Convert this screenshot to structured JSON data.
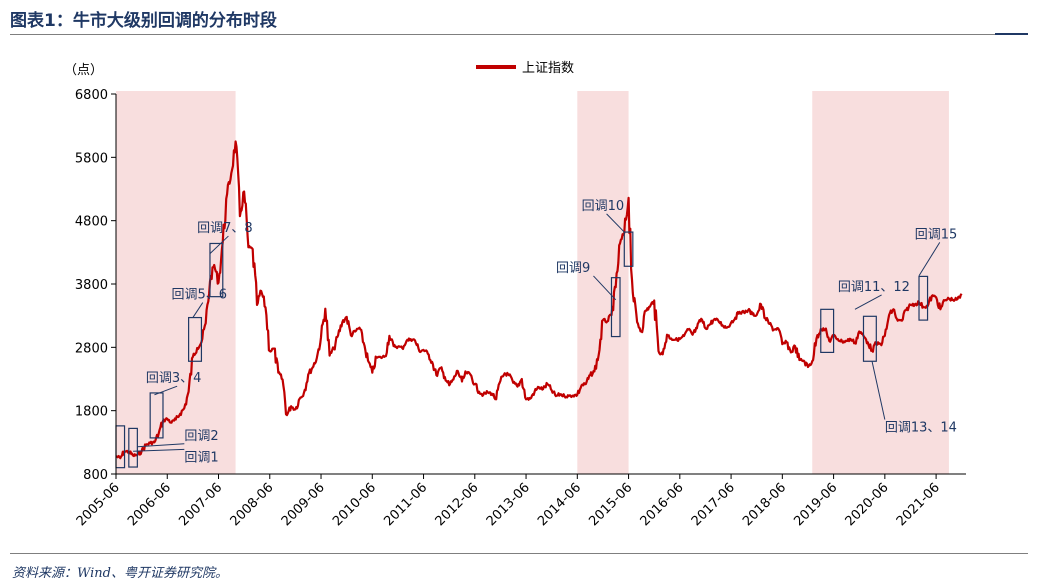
{
  "header": {
    "title": "图表1：牛市大级别回调的分布时段"
  },
  "footer": {
    "source": "资料来源：Wind、粤开证券研究院。"
  },
  "chart_data": {
    "type": "line",
    "unit_label": "（点）",
    "ylim": [
      800,
      6800
    ],
    "yticks": [
      800,
      1800,
      2800,
      3800,
      4800,
      5800,
      6800
    ],
    "xlim": [
      "2005-06",
      "2022-01"
    ],
    "xticks": [
      "2005-06",
      "2006-06",
      "2007-06",
      "2008-06",
      "2009-06",
      "2010-06",
      "2011-06",
      "2012-06",
      "2013-06",
      "2014-06",
      "2015-06",
      "2016-06",
      "2017-06",
      "2018-06",
      "2019-06",
      "2020-06",
      "2021-06"
    ],
    "legend": {
      "position": "top-center"
    },
    "series": [
      {
        "name": "上证指数",
        "color": "#c00000",
        "points": [
          [
            "2005-06",
            1080
          ],
          [
            "2005-07",
            1050
          ],
          [
            "2005-08",
            1160
          ],
          [
            "2005-09",
            1150
          ],
          [
            "2005-10",
            1090
          ],
          [
            "2005-11",
            1100
          ],
          [
            "2005-12",
            1160
          ],
          [
            "2006-01",
            1260
          ],
          [
            "2006-02",
            1290
          ],
          [
            "2006-03",
            1300
          ],
          [
            "2006-04",
            1440
          ],
          [
            "2006-05",
            1640
          ],
          [
            "2006-06",
            1670
          ],
          [
            "2006-07",
            1610
          ],
          [
            "2006-08",
            1660
          ],
          [
            "2006-09",
            1750
          ],
          [
            "2006-10",
            1840
          ],
          [
            "2006-11",
            2100
          ],
          [
            "2006-12",
            2650
          ],
          [
            "2007-01",
            2790
          ],
          [
            "2007-02",
            2880
          ],
          [
            "2007-03",
            3180
          ],
          [
            "2007-04",
            3840
          ],
          [
            "2007-05",
            4100
          ],
          [
            "2007-06",
            3820
          ],
          [
            "2007-07",
            4470
          ],
          [
            "2007-08",
            5220
          ],
          [
            "2007-09",
            5550
          ],
          [
            "2007-10",
            6050
          ],
          [
            "2007-11",
            4870
          ],
          [
            "2007-12",
            5260
          ],
          [
            "2008-01",
            4380
          ],
          [
            "2008-02",
            4350
          ],
          [
            "2008-03",
            3470
          ],
          [
            "2008-04",
            3690
          ],
          [
            "2008-05",
            3430
          ],
          [
            "2008-06",
            2740
          ],
          [
            "2008-07",
            2780
          ],
          [
            "2008-08",
            2400
          ],
          [
            "2008-09",
            2290
          ],
          [
            "2008-10",
            1730
          ],
          [
            "2008-11",
            1870
          ],
          [
            "2008-12",
            1820
          ],
          [
            "2009-01",
            1990
          ],
          [
            "2009-02",
            2080
          ],
          [
            "2009-03",
            2370
          ],
          [
            "2009-04",
            2480
          ],
          [
            "2009-05",
            2630
          ],
          [
            "2009-06",
            2960
          ],
          [
            "2009-07",
            3410
          ],
          [
            "2009-08",
            2670
          ],
          [
            "2009-09",
            2780
          ],
          [
            "2009-10",
            2990
          ],
          [
            "2009-11",
            3200
          ],
          [
            "2009-12",
            3280
          ],
          [
            "2010-01",
            2990
          ],
          [
            "2010-02",
            3050
          ],
          [
            "2010-03",
            3110
          ],
          [
            "2010-04",
            2870
          ],
          [
            "2010-05",
            2590
          ],
          [
            "2010-06",
            2400
          ],
          [
            "2010-07",
            2640
          ],
          [
            "2010-08",
            2640
          ],
          [
            "2010-09",
            2660
          ],
          [
            "2010-10",
            2980
          ],
          [
            "2010-11",
            2820
          ],
          [
            "2010-12",
            2810
          ],
          [
            "2011-01",
            2790
          ],
          [
            "2011-02",
            2900
          ],
          [
            "2011-03",
            2930
          ],
          [
            "2011-04",
            2910
          ],
          [
            "2011-05",
            2740
          ],
          [
            "2011-06",
            2760
          ],
          [
            "2011-07",
            2700
          ],
          [
            "2011-08",
            2570
          ],
          [
            "2011-09",
            2360
          ],
          [
            "2011-10",
            2470
          ],
          [
            "2011-11",
            2330
          ],
          [
            "2011-12",
            2200
          ],
          [
            "2012-01",
            2290
          ],
          [
            "2012-02",
            2430
          ],
          [
            "2012-03",
            2260
          ],
          [
            "2012-04",
            2400
          ],
          [
            "2012-05",
            2370
          ],
          [
            "2012-06",
            2220
          ],
          [
            "2012-07",
            2100
          ],
          [
            "2012-08",
            2050
          ],
          [
            "2012-09",
            2090
          ],
          [
            "2012-10",
            2070
          ],
          [
            "2012-11",
            1980
          ],
          [
            "2012-12",
            2270
          ],
          [
            "2013-01",
            2390
          ],
          [
            "2013-02",
            2360
          ],
          [
            "2013-03",
            2240
          ],
          [
            "2013-04",
            2180
          ],
          [
            "2013-05",
            2300
          ],
          [
            "2013-06",
            1980
          ],
          [
            "2013-07",
            1990
          ],
          [
            "2013-08",
            2100
          ],
          [
            "2013-09",
            2170
          ],
          [
            "2013-10",
            2140
          ],
          [
            "2013-11",
            2220
          ],
          [
            "2013-12",
            2120
          ],
          [
            "2014-01",
            2030
          ],
          [
            "2014-02",
            2060
          ],
          [
            "2014-03",
            2030
          ],
          [
            "2014-04",
            2030
          ],
          [
            "2014-05",
            2040
          ],
          [
            "2014-06",
            2050
          ],
          [
            "2014-07",
            2200
          ],
          [
            "2014-08",
            2220
          ],
          [
            "2014-09",
            2360
          ],
          [
            "2014-10",
            2420
          ],
          [
            "2014-11",
            2680
          ],
          [
            "2014-12",
            3230
          ],
          [
            "2015-01",
            3210
          ],
          [
            "2015-02",
            3310
          ],
          [
            "2015-03",
            3750
          ],
          [
            "2015-04",
            4440
          ],
          [
            "2015-05",
            4610
          ],
          [
            "2015-06",
            5160
          ],
          [
            "2015-07",
            3660
          ],
          [
            "2015-08",
            3200
          ],
          [
            "2015-09",
            3050
          ],
          [
            "2015-10",
            3380
          ],
          [
            "2015-11",
            3440
          ],
          [
            "2015-12",
            3540
          ],
          [
            "2016-01",
            2740
          ],
          [
            "2016-02",
            2690
          ],
          [
            "2016-03",
            3000
          ],
          [
            "2016-04",
            2940
          ],
          [
            "2016-05",
            2920
          ],
          [
            "2016-06",
            2930
          ],
          [
            "2016-07",
            2980
          ],
          [
            "2016-08",
            3080
          ],
          [
            "2016-09",
            3000
          ],
          [
            "2016-10",
            3100
          ],
          [
            "2016-11",
            3250
          ],
          [
            "2016-12",
            3100
          ],
          [
            "2017-01",
            3160
          ],
          [
            "2017-02",
            3240
          ],
          [
            "2017-03",
            3220
          ],
          [
            "2017-04",
            3150
          ],
          [
            "2017-05",
            3110
          ],
          [
            "2017-06",
            3190
          ],
          [
            "2017-07",
            3270
          ],
          [
            "2017-08",
            3360
          ],
          [
            "2017-09",
            3350
          ],
          [
            "2017-10",
            3390
          ],
          [
            "2017-11",
            3320
          ],
          [
            "2017-12",
            3310
          ],
          [
            "2018-01",
            3480
          ],
          [
            "2018-02",
            3260
          ],
          [
            "2018-03",
            3170
          ],
          [
            "2018-04",
            3080
          ],
          [
            "2018-05",
            3100
          ],
          [
            "2018-06",
            2850
          ],
          [
            "2018-07",
            2880
          ],
          [
            "2018-08",
            2720
          ],
          [
            "2018-09",
            2820
          ],
          [
            "2018-10",
            2600
          ],
          [
            "2018-11",
            2590
          ],
          [
            "2018-12",
            2490
          ],
          [
            "2019-01",
            2580
          ],
          [
            "2019-02",
            2940
          ],
          [
            "2019-03",
            3090
          ],
          [
            "2019-04",
            3080
          ],
          [
            "2019-05",
            2900
          ],
          [
            "2019-06",
            2980
          ],
          [
            "2019-07",
            2930
          ],
          [
            "2019-08",
            2890
          ],
          [
            "2019-09",
            2900
          ],
          [
            "2019-10",
            2930
          ],
          [
            "2019-11",
            2870
          ],
          [
            "2019-12",
            3050
          ],
          [
            "2020-01",
            2980
          ],
          [
            "2020-02",
            2880
          ],
          [
            "2020-03",
            2750
          ],
          [
            "2020-04",
            2860
          ],
          [
            "2020-05",
            2850
          ],
          [
            "2020-06",
            2980
          ],
          [
            "2020-07",
            3310
          ],
          [
            "2020-08",
            3400
          ],
          [
            "2020-09",
            3220
          ],
          [
            "2020-10",
            3220
          ],
          [
            "2020-11",
            3390
          ],
          [
            "2020-12",
            3470
          ],
          [
            "2021-01",
            3480
          ],
          [
            "2021-02",
            3510
          ],
          [
            "2021-03",
            3440
          ],
          [
            "2021-04",
            3450
          ],
          [
            "2021-05",
            3610
          ],
          [
            "2021-06",
            3590
          ],
          [
            "2021-07",
            3400
          ],
          [
            "2021-08",
            3540
          ],
          [
            "2021-09",
            3570
          ],
          [
            "2021-10",
            3550
          ],
          [
            "2021-11",
            3560
          ],
          [
            "2021-12",
            3620
          ]
        ]
      }
    ],
    "shaded_periods": [
      {
        "start": "2005-06",
        "end": "2007-10",
        "color": "#f8dede"
      },
      {
        "start": "2014-06",
        "end": "2015-06",
        "color": "#f8dede"
      },
      {
        "start": "2019-01",
        "end": "2021-09",
        "color": "#f8dede"
      }
    ],
    "boxes": [
      {
        "x0": "2005-06",
        "x1": "2005-08",
        "y0": 900,
        "y1": 1560
      },
      {
        "x0": "2005-09",
        "x1": "2005-11",
        "y0": 910,
        "y1": 1520
      },
      {
        "x0": "2006-02",
        "x1": "2006-05",
        "y0": 1370,
        "y1": 2080
      },
      {
        "x0": "2006-11",
        "x1": "2007-02",
        "y0": 2580,
        "y1": 3270
      },
      {
        "x0": "2007-04",
        "x1": "2007-07",
        "y0": 3600,
        "y1": 4440
      },
      {
        "x0": "2015-02",
        "x1": "2015-04",
        "y0": 2970,
        "y1": 3900
      },
      {
        "x0": "2015-05",
        "x1": "2015-07",
        "y0": 4080,
        "y1": 4620
      },
      {
        "x0": "2019-03",
        "x1": "2019-06",
        "y0": 2720,
        "y1": 3400
      },
      {
        "x0": "2020-01",
        "x1": "2020-04",
        "y0": 2580,
        "y1": 3290
      },
      {
        "x0": "2021-02",
        "x1": "2021-04",
        "y0": 3230,
        "y1": 3920
      }
    ],
    "annotations": [
      {
        "text": "回调1",
        "text_at": [
          "2006-10",
          1000
        ],
        "point_to": [
          "2005-10",
          1160
        ]
      },
      {
        "text": "回调2",
        "text_at": [
          "2006-10",
          1340
        ],
        "point_to": [
          "2005-11",
          1230
        ]
      },
      {
        "text": "回调3、4",
        "text_at": [
          "2006-01",
          2250
        ],
        "point_to": [
          "2006-03",
          2050
        ]
      },
      {
        "text": "回调5、6",
        "text_at": [
          "2006-07",
          3570
        ],
        "point_to": [
          "2006-12",
          3270
        ]
      },
      {
        "text": "回调7、8",
        "text_at": [
          "2007-01",
          4620
        ],
        "point_to": [
          "2007-04",
          4280
        ]
      },
      {
        "text": "回调9",
        "text_at": [
          "2014-01",
          3990
        ],
        "point_to": [
          "2015-03",
          3550
        ]
      },
      {
        "text": "回调10",
        "text_at": [
          "2014-07",
          4970
        ],
        "point_to": [
          "2015-05",
          4620
        ]
      },
      {
        "text": "回调11、12",
        "text_at": [
          "2019-07",
          3690
        ],
        "point_to": [
          "2019-11",
          3400
        ]
      },
      {
        "text": "回调13、14",
        "text_at": [
          "2020-06",
          1470
        ],
        "point_to": [
          "2020-03",
          2580
        ]
      },
      {
        "text": "回调15",
        "text_at": [
          "2021-01",
          4520
        ],
        "point_to": [
          "2021-02",
          3930
        ]
      }
    ]
  }
}
